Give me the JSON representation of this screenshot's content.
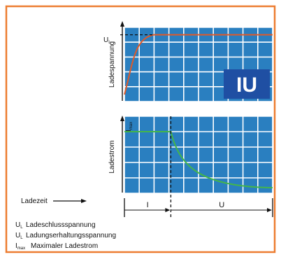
{
  "colors": {
    "frame": "#ed7d31",
    "grid_bg": "#2a7fc0",
    "grid_line": "#ffffff",
    "voltage_curve": "#e05a28",
    "current_curve": "#44b649",
    "badge_bg": "#1f4fa3",
    "badge_text": "#ffffff",
    "text": "#111111"
  },
  "badge": {
    "text": "IU"
  },
  "voltage_chart": {
    "ylabel": "Ladespannung",
    "marker_main": "U",
    "marker_sub": "L",
    "level": 0.9,
    "knee": 0.2
  },
  "current_chart": {
    "ylabel": "Ladestrom",
    "marker_main": "I",
    "marker_sub": "max",
    "level": 0.8,
    "drop": 0.2
  },
  "time_axis": {
    "label": "Ladezeit",
    "phase_i": "I",
    "phase_u": "U"
  },
  "legend": [
    {
      "sym": "U",
      "sub": "L",
      "text": "Ladeschlussspannung"
    },
    {
      "sym": "U",
      "sub": "L",
      "text": "Ladungserhaltungsspannung"
    },
    {
      "sym": "I",
      "sub": "max",
      "text": "Maximaler Ladestrom"
    }
  ]
}
